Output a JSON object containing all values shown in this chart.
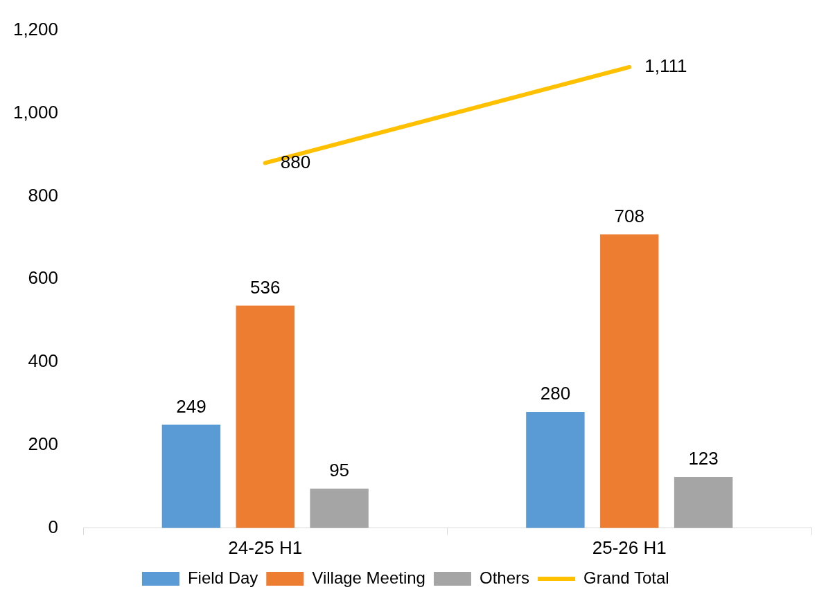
{
  "chart_data": {
    "type": "bar",
    "categories": [
      "24-25 H1",
      "25-26 H1"
    ],
    "series": [
      {
        "name": "Field Day",
        "color": "#5b9bd5",
        "values": [
          249,
          280
        ],
        "value_labels": [
          "249",
          "280"
        ]
      },
      {
        "name": "Village Meeting",
        "color": "#ed7d31",
        "values": [
          536,
          708
        ],
        "value_labels": [
          "536",
          "708"
        ]
      },
      {
        "name": "Others",
        "color": "#a5a5a5",
        "values": [
          95,
          123
        ],
        "value_labels": [
          "95",
          "123"
        ]
      },
      {
        "name": "Grand Total",
        "type": "line",
        "color": "#ffc000",
        "values": [
          880,
          1111
        ],
        "value_labels": [
          "880",
          "1,111"
        ]
      }
    ],
    "ylim": [
      0,
      1200
    ],
    "yticks": [
      0,
      200,
      400,
      600,
      800,
      {
        "value": 1000,
        "label": "1,000"
      },
      {
        "value": 1200,
        "label": "1,200"
      }
    ],
    "legend": "bottom"
  }
}
